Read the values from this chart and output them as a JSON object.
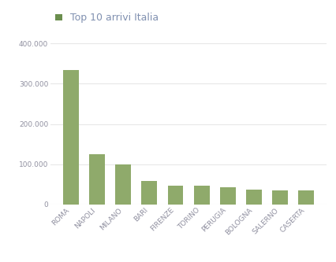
{
  "categories": [
    "ROMA",
    "NAPOLI",
    "MILANO",
    "BARI",
    "FIRENZE",
    "TORINO",
    "PERUGIA",
    "BOLOGNA",
    "SALERNO",
    "CASERTA"
  ],
  "values": [
    335000,
    125000,
    100000,
    58000,
    47000,
    47000,
    42000,
    37000,
    35000,
    35000
  ],
  "bar_color": "#8faa6b",
  "legend_label": "Top 10 arrivi Italia",
  "legend_square_color": "#6b8e4e",
  "legend_text_color": "#8090b0",
  "ylim": [
    0,
    430000
  ],
  "yticks": [
    0,
    100000,
    200000,
    300000,
    400000
  ],
  "background_color": "#ffffff",
  "grid_color": "#e8e8e8",
  "tick_label_color": "#9090a0",
  "title_fontsize": 9,
  "tick_fontsize": 6.5,
  "bar_width": 0.6
}
